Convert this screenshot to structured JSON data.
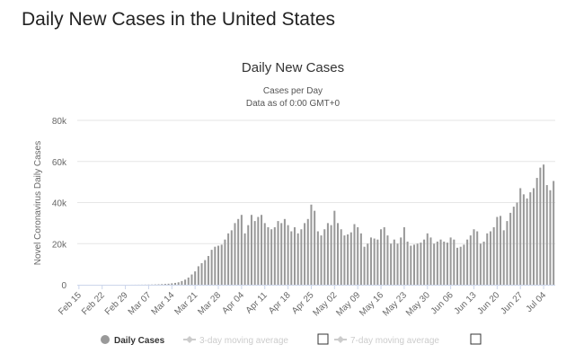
{
  "page": {
    "title": "Daily New Cases in the United States"
  },
  "chart_data": {
    "type": "bar",
    "title": "Daily New Cases",
    "subtitle_line1": "Cases per Day",
    "subtitle_line2": "Data as of 0:00 GMT+0",
    "xlabel": "",
    "ylabel": "Novel Coronavirus Daily Cases",
    "ylim": [
      0,
      80000
    ],
    "yticks": [
      {
        "value": 0,
        "label": "0"
      },
      {
        "value": 20000,
        "label": "20k"
      },
      {
        "value": 40000,
        "label": "40k"
      },
      {
        "value": 60000,
        "label": "60k"
      },
      {
        "value": 80000,
        "label": "80k"
      }
    ],
    "grid": true,
    "legend_position": "bottom",
    "bar_color": "#999999",
    "start_date": "2020-02-15",
    "xticks": [
      {
        "index": 0,
        "label": "Feb 15"
      },
      {
        "index": 7,
        "label": "Feb 22"
      },
      {
        "index": 14,
        "label": "Feb 29"
      },
      {
        "index": 21,
        "label": "Mar 07"
      },
      {
        "index": 28,
        "label": "Mar 14"
      },
      {
        "index": 35,
        "label": "Mar 21"
      },
      {
        "index": 42,
        "label": "Mar 28"
      },
      {
        "index": 49,
        "label": "Apr 04"
      },
      {
        "index": 56,
        "label": "Apr 11"
      },
      {
        "index": 63,
        "label": "Apr 18"
      },
      {
        "index": 70,
        "label": "Apr 25"
      },
      {
        "index": 77,
        "label": "May 02"
      },
      {
        "index": 84,
        "label": "May 09"
      },
      {
        "index": 91,
        "label": "May 16"
      },
      {
        "index": 98,
        "label": "May 23"
      },
      {
        "index": 105,
        "label": "May 30"
      },
      {
        "index": 112,
        "label": "Jun 06"
      },
      {
        "index": 119,
        "label": "Jun 13"
      },
      {
        "index": 126,
        "label": "Jun 20"
      },
      {
        "index": 133,
        "label": "Jun 27"
      },
      {
        "index": 140,
        "label": "Jul 04"
      }
    ],
    "series": [
      {
        "name": "Daily Cases",
        "values": [
          0,
          0,
          0,
          0,
          0,
          0,
          0,
          0,
          0,
          0,
          0,
          0,
          0,
          0,
          0,
          0,
          10,
          20,
          30,
          40,
          60,
          80,
          100,
          150,
          200,
          300,
          400,
          500,
          700,
          900,
          1200,
          1800,
          2500,
          3500,
          5000,
          6500,
          9000,
          10500,
          12000,
          14000,
          17000,
          18500,
          19000,
          19500,
          22000,
          25000,
          26500,
          30000,
          32000,
          34000,
          25000,
          29000,
          34000,
          31000,
          33000,
          34000,
          30000,
          28000,
          27000,
          28000,
          31000,
          30000,
          32000,
          29000,
          26000,
          28000,
          25000,
          27000,
          30000,
          32000,
          39000,
          36000,
          26000,
          24000,
          27000,
          30000,
          29000,
          36000,
          30000,
          27000,
          24000,
          24500,
          25500,
          29500,
          28000,
          25000,
          18500,
          20000,
          23000,
          22500,
          22000,
          27000,
          28000,
          24000,
          20000,
          22000,
          20000,
          23000,
          28000,
          21000,
          19000,
          19500,
          20000,
          20500,
          22000,
          25000,
          23000,
          20000,
          21000,
          22000,
          21000,
          20500,
          23000,
          22000,
          18000,
          18500,
          19500,
          22000,
          24000,
          27000,
          26000,
          20000,
          21000,
          25000,
          26000,
          28000,
          33000,
          33500,
          26500,
          31000,
          35000,
          38000,
          40000,
          47000,
          44000,
          42000,
          45000,
          47000,
          52000,
          57000,
          58500,
          48500,
          46000,
          50500
        ]
      }
    ]
  },
  "legend": {
    "items": [
      {
        "label": "Daily Cases",
        "active": true,
        "color": "#999999"
      },
      {
        "label": "3-day moving average",
        "active": false,
        "color": "#cccccc"
      },
      {
        "label": "7-day moving average",
        "active": false,
        "color": "#cccccc"
      }
    ]
  }
}
